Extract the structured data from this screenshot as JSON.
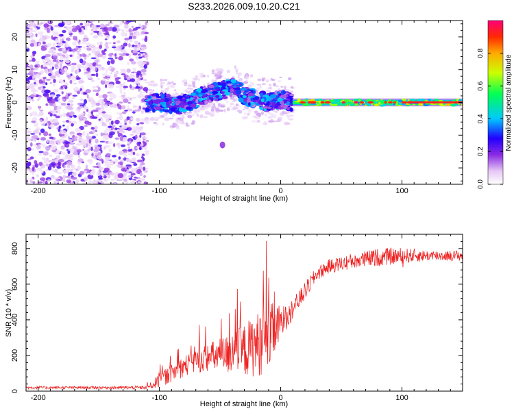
{
  "title": "S233.2026.009.10.20.C21",
  "chart_data": [
    {
      "type": "heatmap",
      "xlabel": "Height of straight line (km)",
      "ylabel": "Frequency (Hz)",
      "xlim": [
        -210,
        150
      ],
      "ylim": [
        -25,
        25
      ],
      "xticks": [
        -200,
        -100,
        0,
        100
      ],
      "yticks": [
        -20,
        -10,
        0,
        10,
        20
      ],
      "regions": [
        {
          "name": "noise",
          "x": [
            -210,
            -110
          ],
          "y": [
            -25,
            25
          ],
          "amplitude": [
            0.0,
            0.2
          ]
        },
        {
          "name": "wandering-signal",
          "x": [
            -110,
            10
          ],
          "y": [
            -6,
            8
          ],
          "amplitude": [
            0.1,
            0.6
          ]
        },
        {
          "name": "stable-signal",
          "x": [
            10,
            150
          ],
          "y": [
            -1,
            1
          ],
          "amplitude": [
            0.4,
            1.0
          ]
        }
      ],
      "signal_center_track": {
        "x": [
          -105,
          -95,
          -85,
          -75,
          -65,
          -55,
          -45,
          -38,
          -30,
          -20,
          -10,
          0,
          10,
          20,
          50,
          100,
          150
        ],
        "freq": [
          0,
          0,
          -1,
          0,
          2,
          3,
          4,
          5,
          2,
          1,
          0,
          1,
          0,
          0,
          0,
          0,
          0
        ]
      },
      "colorbar": {
        "label": "Normalized spectral amplitude",
        "ticks": [
          "0.0",
          "0.2",
          "0.4",
          "0.6",
          "0.8"
        ],
        "range": [
          0,
          1
        ]
      }
    },
    {
      "type": "line",
      "xlabel": "Height of straight line (km)",
      "ylabel": "SNR (10 * v/v)",
      "xlim": [
        -210,
        150
      ],
      "ylim": [
        0,
        880
      ],
      "xticks": [
        -200,
        -100,
        0,
        100
      ],
      "yticks": [
        0,
        200,
        400,
        600,
        800
      ],
      "series": [
        {
          "name": "SNR",
          "color": "#ee2222",
          "x": [
            -210,
            -150,
            -110,
            -100,
            -90,
            -80,
            -70,
            -60,
            -50,
            -40,
            -30,
            -20,
            -10,
            0,
            10,
            20,
            30,
            40,
            60,
            80,
            100,
            120,
            150
          ],
          "y": [
            20,
            20,
            20,
            60,
            100,
            140,
            170,
            190,
            200,
            210,
            230,
            260,
            300,
            380,
            460,
            560,
            660,
            700,
            730,
            750,
            760,
            760,
            760
          ],
          "noise_amp": [
            8,
            8,
            10,
            40,
            50,
            60,
            70,
            80,
            100,
            120,
            150,
            180,
            200,
            100,
            60,
            50,
            40,
            40,
            45,
            50,
            45,
            30,
            30
          ]
        }
      ]
    }
  ]
}
